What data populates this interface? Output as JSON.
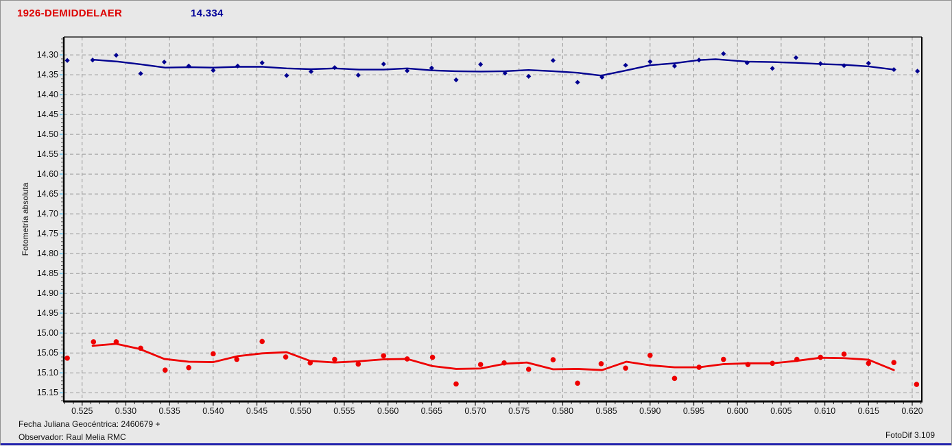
{
  "header": {
    "object_name": "1926-DEMIDDELAER",
    "value": "14.334"
  },
  "footer": {
    "line1": "Fecha Juliana Geocéntrica: 2460679 +",
    "line2": "Observador: Raul Melia RMC",
    "app_version": "FotoDif 3.109"
  },
  "colors": {
    "background": "#e8e8e8",
    "title_red": "#dd0000",
    "value_blue": "#000099",
    "series_blue": "#000090",
    "series_red": "#ee0000",
    "grid": "#999999",
    "axis": "#000000",
    "y_major_tick": "#7fc8e8",
    "tick_text": "#111111"
  },
  "chart_data": {
    "type": "scatter",
    "title": "1926-DEMIDDELAER",
    "xlabel": "",
    "ylabel": "Fotometría absoluta",
    "grid": true,
    "legend_position": "none",
    "x_axis": {
      "min": 0.5229,
      "max": 0.6211,
      "major_tick_step": 0.005,
      "minor_tick_step": 0.001,
      "tick_values": [
        0.525,
        0.53,
        0.535,
        0.54,
        0.545,
        0.55,
        0.555,
        0.56,
        0.565,
        0.57,
        0.575,
        0.58,
        0.585,
        0.59,
        0.595,
        0.6,
        0.605,
        0.61,
        0.615,
        0.62
      ],
      "tick_labels": [
        "0.525",
        "0.530",
        "0.535",
        "0.540",
        "0.545",
        "0.550",
        "0.555",
        "0.560",
        "0.565",
        "0.570",
        "0.575",
        "0.580",
        "0.585",
        "0.590",
        "0.595",
        "0.600",
        "0.605",
        "0.610",
        "0.615",
        "0.620"
      ]
    },
    "y_axis": {
      "min": 14.255,
      "max": 15.172,
      "inverted_magnitude_axis": true,
      "major_tick_step": 0.05,
      "minor_tick_step": 0.01,
      "tick_values": [
        14.3,
        14.35,
        14.4,
        14.45,
        14.5,
        14.55,
        14.6,
        14.65,
        14.7,
        14.75,
        14.8,
        14.85,
        14.9,
        14.95,
        15.0,
        15.05,
        15.1,
        15.15
      ],
      "tick_labels": [
        "14.30",
        "14.35",
        "14.40",
        "14.45",
        "14.50",
        "14.55",
        "14.60",
        "14.65",
        "14.70",
        "14.75",
        "14.80",
        "14.85",
        "14.90",
        "14.95",
        "15.00",
        "15.05",
        "15.10",
        "15.15"
      ]
    },
    "series": [
      {
        "id": "blue-scatter",
        "kind": "points",
        "marker": "diamond",
        "size": 3.6,
        "color": "#000090",
        "points": [
          [
            0.5233,
            14.314
          ],
          [
            0.5262,
            14.313
          ],
          [
            0.5289,
            14.301
          ],
          [
            0.5317,
            14.347
          ],
          [
            0.5344,
            14.318
          ],
          [
            0.5372,
            14.328
          ],
          [
            0.54,
            14.339
          ],
          [
            0.5428,
            14.328
          ],
          [
            0.5456,
            14.32
          ],
          [
            0.5484,
            14.352
          ],
          [
            0.5512,
            14.342
          ],
          [
            0.5539,
            14.332
          ],
          [
            0.5566,
            14.351
          ],
          [
            0.5595,
            14.323
          ],
          [
            0.5622,
            14.34
          ],
          [
            0.565,
            14.333
          ],
          [
            0.5678,
            14.363
          ],
          [
            0.5706,
            14.324
          ],
          [
            0.5734,
            14.346
          ],
          [
            0.5761,
            14.354
          ],
          [
            0.5789,
            14.314
          ],
          [
            0.5817,
            14.369
          ],
          [
            0.5845,
            14.356
          ],
          [
            0.5872,
            14.326
          ],
          [
            0.59,
            14.317
          ],
          [
            0.5928,
            14.328
          ],
          [
            0.5956,
            14.313
          ],
          [
            0.5984,
            14.297
          ],
          [
            0.6011,
            14.32
          ],
          [
            0.604,
            14.334
          ],
          [
            0.6067,
            14.307
          ],
          [
            0.6095,
            14.322
          ],
          [
            0.6122,
            14.327
          ],
          [
            0.615,
            14.321
          ],
          [
            0.6179,
            14.337
          ],
          [
            0.6206,
            14.341
          ]
        ]
      },
      {
        "id": "red-scatter",
        "kind": "points",
        "marker": "circle",
        "size": 3.8,
        "color": "#ee0000",
        "points": [
          [
            0.5233,
            15.063
          ],
          [
            0.5263,
            15.022
          ],
          [
            0.5289,
            15.022
          ],
          [
            0.5317,
            15.038
          ],
          [
            0.5345,
            15.093
          ],
          [
            0.5372,
            15.087
          ],
          [
            0.54,
            15.052
          ],
          [
            0.5427,
            15.066
          ],
          [
            0.5456,
            15.021
          ],
          [
            0.5483,
            15.06
          ],
          [
            0.5511,
            15.075
          ],
          [
            0.5539,
            15.066
          ],
          [
            0.5566,
            15.078
          ],
          [
            0.5595,
            15.057
          ],
          [
            0.5622,
            15.065
          ],
          [
            0.5651,
            15.061
          ],
          [
            0.5678,
            15.128
          ],
          [
            0.5706,
            15.079
          ],
          [
            0.5733,
            15.075
          ],
          [
            0.5761,
            15.091
          ],
          [
            0.5789,
            15.067
          ],
          [
            0.5817,
            15.126
          ],
          [
            0.5844,
            15.077
          ],
          [
            0.5872,
            15.088
          ],
          [
            0.59,
            15.056
          ],
          [
            0.5928,
            15.114
          ],
          [
            0.5956,
            15.086
          ],
          [
            0.5984,
            15.066
          ],
          [
            0.6012,
            15.079
          ],
          [
            0.604,
            15.076
          ],
          [
            0.6068,
            15.066
          ],
          [
            0.6095,
            15.061
          ],
          [
            0.6122,
            15.053
          ],
          [
            0.615,
            15.076
          ],
          [
            0.6179,
            15.074
          ],
          [
            0.6205,
            15.129
          ]
        ]
      },
      {
        "id": "blue-trend",
        "kind": "line",
        "color": "#000090",
        "width": 2.4,
        "points": [
          [
            0.5262,
            14.312
          ],
          [
            0.5291,
            14.317
          ],
          [
            0.5318,
            14.324
          ],
          [
            0.5345,
            14.332
          ],
          [
            0.5373,
            14.331
          ],
          [
            0.54,
            14.332
          ],
          [
            0.5429,
            14.33
          ],
          [
            0.5457,
            14.33
          ],
          [
            0.5484,
            14.334
          ],
          [
            0.5512,
            14.336
          ],
          [
            0.5539,
            14.334
          ],
          [
            0.5567,
            14.337
          ],
          [
            0.5595,
            14.337
          ],
          [
            0.5622,
            14.334
          ],
          [
            0.565,
            14.339
          ],
          [
            0.5677,
            14.341
          ],
          [
            0.5706,
            14.342
          ],
          [
            0.5734,
            14.341
          ],
          [
            0.5761,
            14.338
          ],
          [
            0.5789,
            14.341
          ],
          [
            0.5817,
            14.345
          ],
          [
            0.5844,
            14.352
          ],
          [
            0.5873,
            14.339
          ],
          [
            0.59,
            14.326
          ],
          [
            0.5928,
            14.321
          ],
          [
            0.5956,
            14.313
          ],
          [
            0.5975,
            14.311
          ],
          [
            0.6011,
            14.317
          ],
          [
            0.604,
            14.318
          ],
          [
            0.6067,
            14.32
          ],
          [
            0.6095,
            14.323
          ],
          [
            0.6122,
            14.325
          ],
          [
            0.615,
            14.329
          ],
          [
            0.6179,
            14.337
          ]
        ]
      },
      {
        "id": "red-trend",
        "kind": "line",
        "color": "#ee0000",
        "width": 2.8,
        "points": [
          [
            0.5262,
            15.032
          ],
          [
            0.5289,
            15.027
          ],
          [
            0.5316,
            15.04
          ],
          [
            0.5344,
            15.065
          ],
          [
            0.5372,
            15.072
          ],
          [
            0.54,
            15.073
          ],
          [
            0.5428,
            15.058
          ],
          [
            0.5456,
            15.051
          ],
          [
            0.5484,
            15.048
          ],
          [
            0.5511,
            15.07
          ],
          [
            0.5539,
            15.074
          ],
          [
            0.5566,
            15.071
          ],
          [
            0.5595,
            15.066
          ],
          [
            0.5622,
            15.065
          ],
          [
            0.5651,
            15.083
          ],
          [
            0.5678,
            15.09
          ],
          [
            0.5706,
            15.089
          ],
          [
            0.5734,
            15.077
          ],
          [
            0.5759,
            15.074
          ],
          [
            0.5789,
            15.091
          ],
          [
            0.5817,
            15.09
          ],
          [
            0.5845,
            15.093
          ],
          [
            0.5873,
            15.072
          ],
          [
            0.59,
            15.081
          ],
          [
            0.5928,
            15.086
          ],
          [
            0.5956,
            15.086
          ],
          [
            0.5984,
            15.078
          ],
          [
            0.6012,
            15.076
          ],
          [
            0.604,
            15.076
          ],
          [
            0.6067,
            15.07
          ],
          [
            0.6095,
            15.062
          ],
          [
            0.6122,
            15.063
          ],
          [
            0.615,
            15.067
          ],
          [
            0.6179,
            15.093
          ]
        ]
      }
    ]
  }
}
